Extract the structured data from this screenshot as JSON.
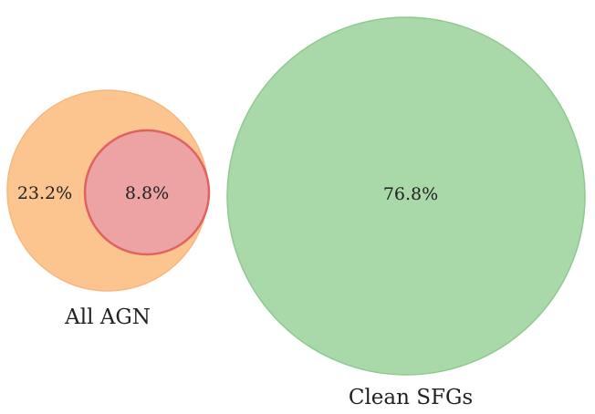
{
  "venn": {
    "all_agn": {
      "label": "All AGN",
      "outside_pct": "23.2%",
      "fill": "#fcc58f",
      "stroke": "#f6b77f"
    },
    "overlap": {
      "pct": "8.8%",
      "fill": "#eda3a4",
      "stroke": "#e0625f"
    },
    "clean_sfgs": {
      "label": "Clean SFGs",
      "pct": "76.8%",
      "fill": "#a9d8a9",
      "stroke": "#8fc98f"
    }
  }
}
